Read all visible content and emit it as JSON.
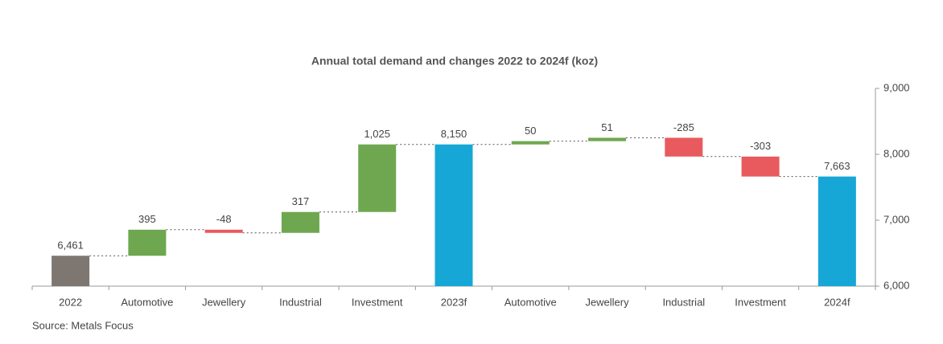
{
  "chart_data": {
    "type": "waterfall",
    "title": "Annual total demand and changes 2022 to 2024f (koz)",
    "source": "Source: Metals Focus",
    "categories": [
      "2022",
      "Automotive",
      "Jewellery",
      "Industrial",
      "Investment",
      "2023f",
      "Automotive",
      "Jewellery",
      "Industrial",
      "Investment",
      "2024f"
    ],
    "values": [
      6461,
      395,
      -48,
      317,
      1025,
      8150,
      50,
      51,
      -285,
      -303,
      7663
    ],
    "value_labels": [
      "6,461",
      "395",
      "-48",
      "317",
      "1,025",
      "8,150",
      "50",
      "51",
      "-285",
      "-303",
      "7,663"
    ],
    "measures": [
      "absolute",
      "relative",
      "relative",
      "relative",
      "relative",
      "absolute",
      "relative",
      "relative",
      "relative",
      "relative",
      "absolute"
    ],
    "colors": [
      "#7d7671",
      "#6ea74f",
      "#e85a5d",
      "#6ea74f",
      "#6ea74f",
      "#16a7d6",
      "#6ea74f",
      "#6ea74f",
      "#e85a5d",
      "#e85a5d",
      "#16a7d6"
    ],
    "ylim": [
      6000,
      9000
    ],
    "yticks": [
      {
        "value": 6000,
        "label": "6,000"
      },
      {
        "value": 7000,
        "label": "7,000"
      },
      {
        "value": 8000,
        "label": "8,000"
      },
      {
        "value": 9000,
        "label": "9,000"
      }
    ],
    "y_axis_side": "right"
  }
}
